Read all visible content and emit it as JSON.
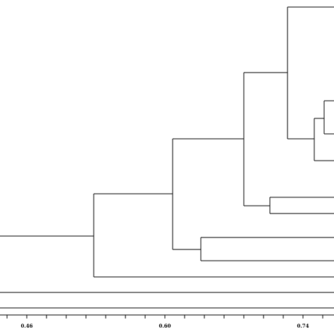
{
  "diagram": {
    "type": "dendrogram",
    "line_color": "#000000",
    "axis": {
      "tick_labels": [
        "0.46",
        "0.60",
        "0.74"
      ]
    }
  }
}
